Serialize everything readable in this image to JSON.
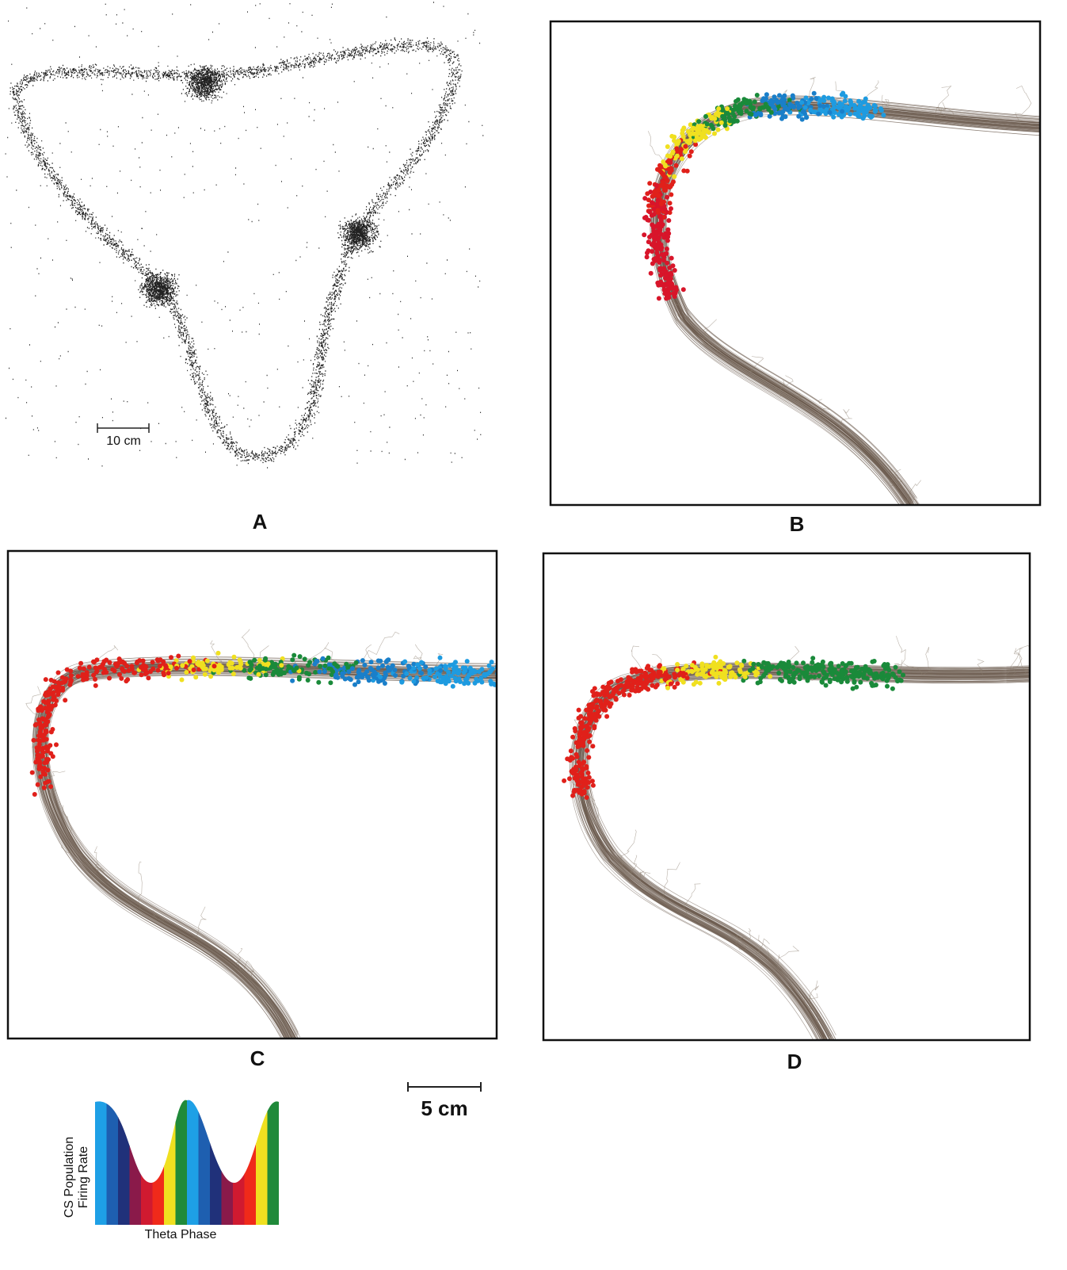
{
  "panels": [
    {
      "label": "A",
      "scale_bar": "10 cm"
    },
    {
      "label": "B"
    },
    {
      "label": "C"
    },
    {
      "label": "D"
    }
  ],
  "scale_bar": "5 cm",
  "legend": {
    "y_label_line1": "CS Population",
    "y_label_line2": "Firing Rate",
    "x_label": "Theta Phase"
  }
}
